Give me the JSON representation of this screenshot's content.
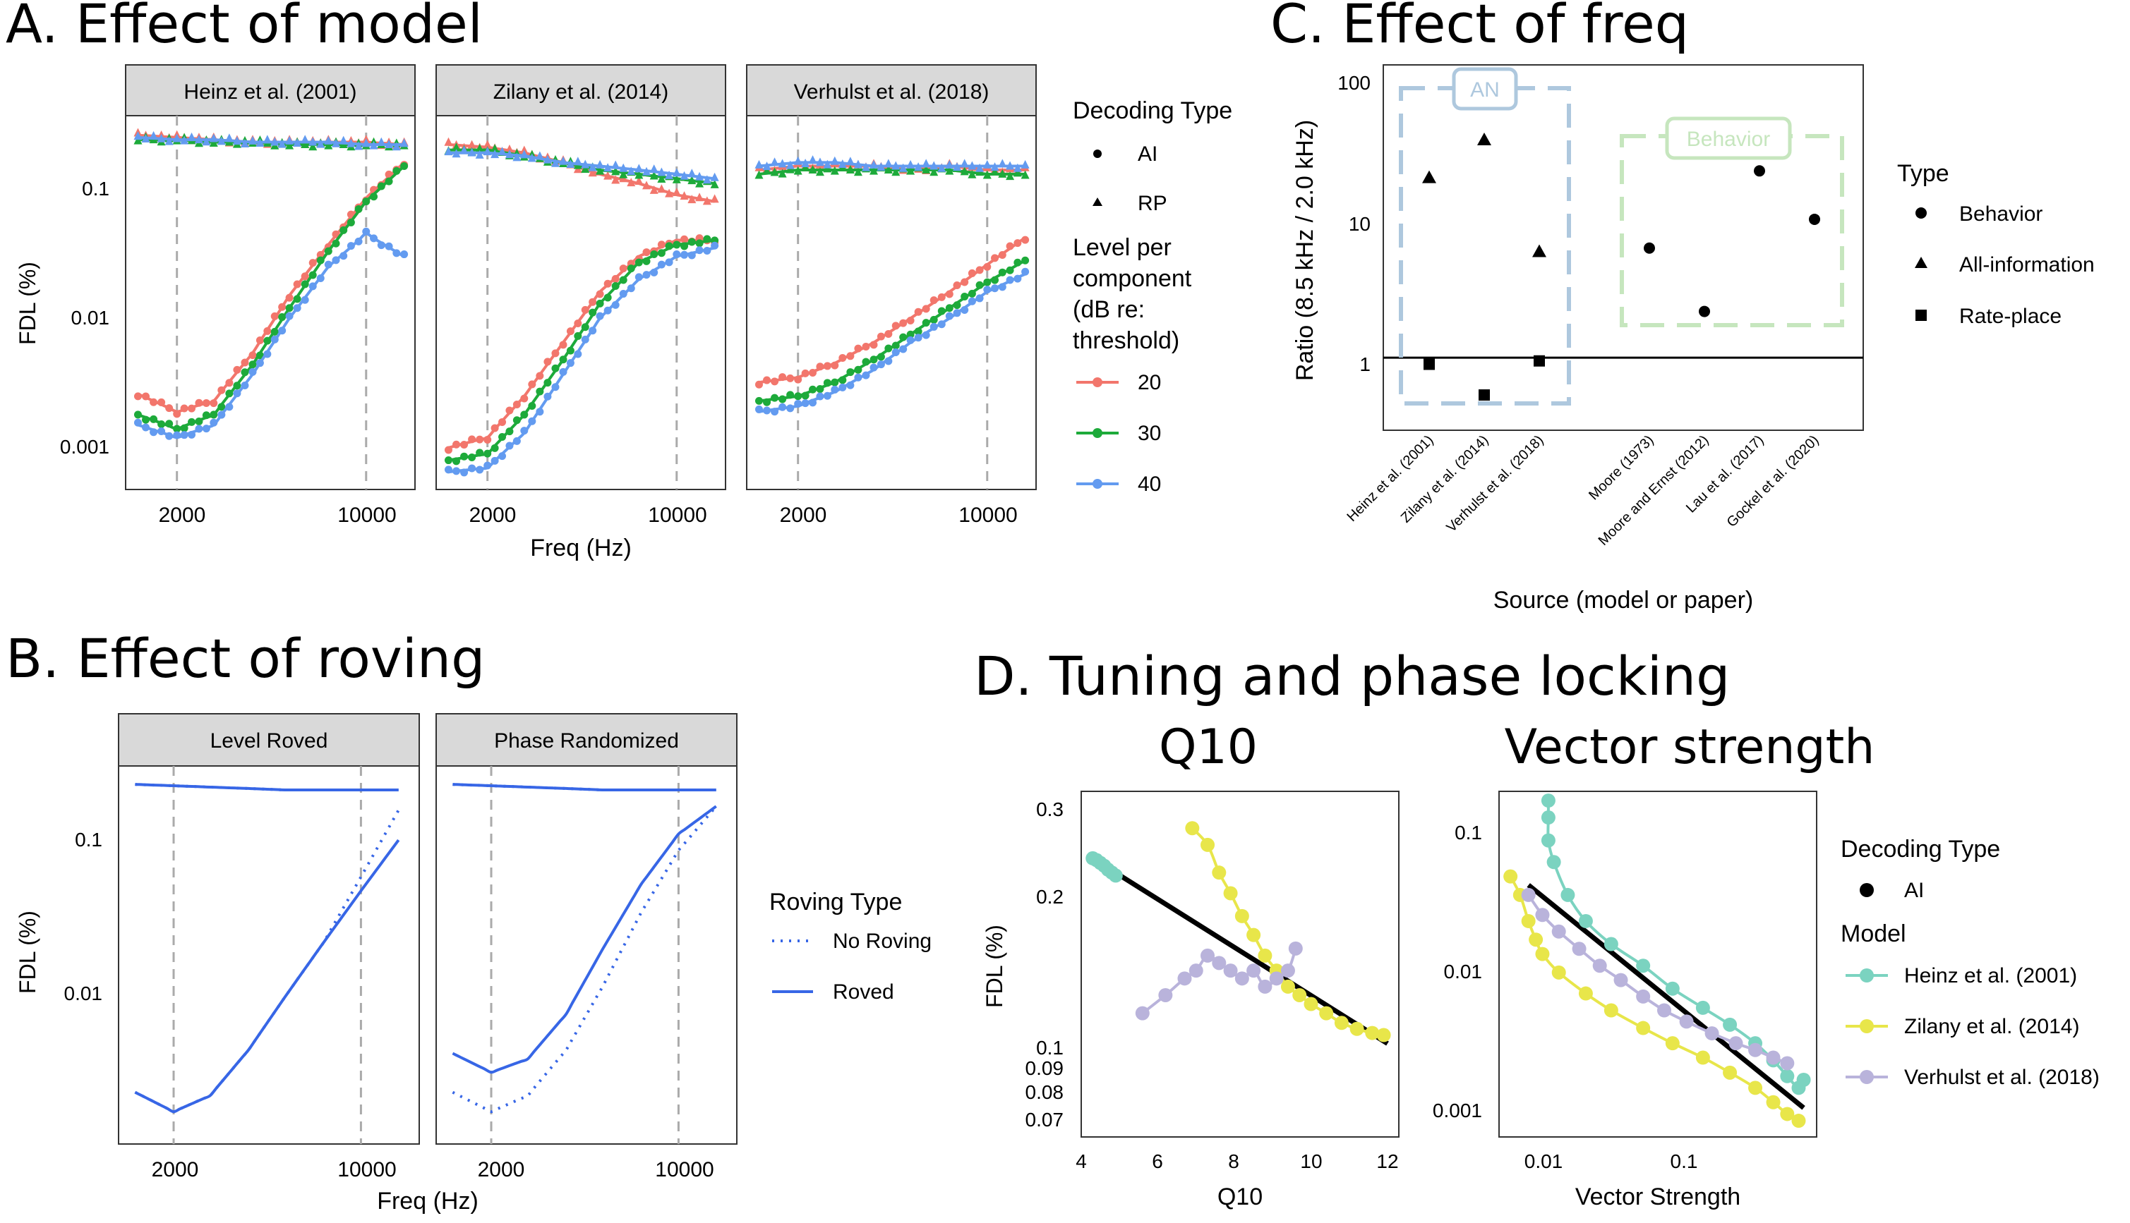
{
  "colors": {
    "red": "#F2766C",
    "green": "#1DAA3A",
    "blue": "#639BF0",
    "teal": "#7BD3C0",
    "yellow": "#E8E64A",
    "lavender": "#B9B3DB",
    "an_box": "#AEC8DE",
    "behavior_box": "#C6E6BE",
    "strip": "#D9D9D9",
    "roving_blue": "#3766E6"
  },
  "panelA": {
    "title": "A. Effect of model",
    "ylabel": "FDL (%)",
    "xlabel": "Freq (Hz)",
    "facets": [
      "Heinz et al. (2001)",
      "Zilany et al. (2014)",
      "Verhulst et al. (2018)"
    ],
    "xticks": [
      "2000",
      "10000"
    ],
    "yticks": [
      "0.1",
      "0.01",
      "0.001"
    ],
    "legend": {
      "decoding_title": "Decoding Type",
      "decoding_items": [
        "AI",
        "RP"
      ],
      "level_title_lines": [
        "Level per",
        "component",
        "(dB re:",
        "threshold)"
      ],
      "level_items": [
        "20",
        "30",
        "40"
      ]
    }
  },
  "panelB": {
    "title": "B. Effect of roving",
    "ylabel": "FDL (%)",
    "xlabel": "Freq (Hz)",
    "facets": [
      "Level Roved",
      "Phase Randomized"
    ],
    "xticks": [
      "2000",
      "10000"
    ],
    "yticks": [
      "0.1",
      "0.01"
    ],
    "legend": {
      "title": "Roving Type",
      "items": [
        "No Roving",
        "Roved"
      ]
    }
  },
  "panelC": {
    "title": "C. Effect of freq",
    "ylabel": "Ratio (8.5 kHz / 2.0 kHz)",
    "xlabel": "Source (model or paper)",
    "yticks": [
      "100",
      "10",
      "1"
    ],
    "box_an": "AN",
    "box_behavior": "Behavior",
    "legend": {
      "title": "Type",
      "items": [
        "Behavior",
        "All-information",
        "Rate-place"
      ]
    }
  },
  "panelD": {
    "title": "D. Tuning and phase locking",
    "q10": {
      "title": "Q10",
      "ylabel": "FDL (%)",
      "xlabel": "Q10",
      "xticks": [
        "4",
        "6",
        "8",
        "10",
        "12"
      ],
      "yticks": [
        "0.3",
        "0.2",
        "0.1",
        "0.09",
        "0.08",
        "0.07"
      ]
    },
    "vs": {
      "title": "Vector strength",
      "xlabel": "Vector Strength",
      "xticks": [
        "0.01",
        "0.1"
      ],
      "yticks": [
        "0.1",
        "0.01",
        "0.001"
      ]
    },
    "legend": {
      "decoding_title": "Decoding Type",
      "decoding_items": [
        "AI"
      ],
      "model_title": "Model",
      "model_items": [
        "Heinz et al. (2001)",
        "Zilany et al. (2014)",
        "Verhulst et al. (2018)"
      ]
    }
  },
  "chart_data": [
    {
      "id": "A",
      "type": "scatter",
      "title": "A. Effect of model",
      "xlabel": "Freq (Hz)",
      "ylabel": "FDL (%)",
      "x_scale": "log",
      "y_scale": "log",
      "xlim": [
        1300,
        17000
      ],
      "ylim": [
        0.0005,
        0.35
      ],
      "x": [
        1400,
        2000,
        2800,
        4000,
        5600,
        8000,
        11300,
        16000
      ],
      "facets": [
        {
          "name": "Heinz et al. (2001)",
          "series": [
            {
              "name": "20",
              "decoding": "RP",
              "values": [
                0.26,
                0.25,
                0.24,
                0.23,
                0.23,
                0.23,
                0.23,
                0.22
              ]
            },
            {
              "name": "30",
              "decoding": "RP",
              "values": [
                0.24,
                0.24,
                0.23,
                0.23,
                0.22,
                0.22,
                0.22,
                0.22
              ]
            },
            {
              "name": "40",
              "decoding": "RP",
              "values": [
                0.25,
                0.24,
                0.24,
                0.23,
                0.23,
                0.23,
                0.22,
                0.22
              ]
            },
            {
              "name": "20",
              "decoding": "AI",
              "values": [
                0.0026,
                0.0019,
                0.0023,
                0.0054,
                0.015,
                0.037,
                0.085,
                0.16
              ]
            },
            {
              "name": "30",
              "decoding": "AI",
              "values": [
                0.0018,
                0.0014,
                0.0018,
                0.0044,
                0.012,
                0.033,
                0.08,
                0.15
              ]
            },
            {
              "name": "40",
              "decoding": "AI",
              "values": [
                0.0015,
                0.0012,
                0.0015,
                0.0037,
                0.01,
                0.025,
                0.045,
                0.03
              ]
            }
          ]
        },
        {
          "name": "Zilany et al. (2014)",
          "series": [
            {
              "name": "20",
              "decoding": "RP",
              "values": [
                0.22,
                0.21,
                0.19,
                0.16,
                0.13,
                0.11,
                0.09,
                0.08
              ]
            },
            {
              "name": "30",
              "decoding": "RP",
              "values": [
                0.2,
                0.2,
                0.18,
                0.16,
                0.14,
                0.13,
                0.12,
                0.11
              ]
            },
            {
              "name": "40",
              "decoding": "RP",
              "values": [
                0.19,
                0.19,
                0.18,
                0.16,
                0.15,
                0.14,
                0.13,
                0.12
              ]
            },
            {
              "name": "20",
              "decoding": "AI",
              "values": [
                0.001,
                0.0012,
                0.0025,
                0.0065,
                0.016,
                0.03,
                0.04,
                0.04
              ]
            },
            {
              "name": "30",
              "decoding": "AI",
              "values": [
                0.0008,
                0.0009,
                0.0018,
                0.0048,
                0.013,
                0.027,
                0.037,
                0.04
              ]
            },
            {
              "name": "40",
              "decoding": "AI",
              "values": [
                0.00065,
                0.0007,
                0.0013,
                0.0037,
                0.01,
                0.02,
                0.03,
                0.035
              ]
            }
          ]
        },
        {
          "name": "Verhulst et al. (2018)",
          "series": [
            {
              "name": "20",
              "decoding": "RP",
              "values": [
                0.14,
                0.15,
                0.15,
                0.15,
                0.14,
                0.15,
                0.14,
                0.14
              ]
            },
            {
              "name": "30",
              "decoding": "RP",
              "values": [
                0.13,
                0.14,
                0.14,
                0.14,
                0.14,
                0.14,
                0.13,
                0.13
              ]
            },
            {
              "name": "40",
              "decoding": "RP",
              "values": [
                0.15,
                0.16,
                0.16,
                0.15,
                0.15,
                0.15,
                0.15,
                0.15
              ]
            },
            {
              "name": "20",
              "decoding": "AI",
              "values": [
                0.0032,
                0.0035,
                0.0045,
                0.0065,
                0.01,
                0.016,
                0.026,
                0.042
              ]
            },
            {
              "name": "30",
              "decoding": "AI",
              "values": [
                0.0023,
                0.0025,
                0.0032,
                0.0048,
                0.0075,
                0.012,
                0.019,
                0.028
              ]
            },
            {
              "name": "40",
              "decoding": "AI",
              "values": [
                0.0019,
                0.0021,
                0.0027,
                0.004,
                0.0065,
                0.01,
                0.016,
                0.022
              ]
            }
          ]
        }
      ]
    },
    {
      "id": "B",
      "type": "line",
      "title": "B. Effect of roving",
      "xlabel": "Freq (Hz)",
      "ylabel": "FDL (%)",
      "x_scale": "log",
      "y_scale": "log",
      "xlim": [
        1300,
        17000
      ],
      "ylim": [
        0.0009,
        0.3
      ],
      "x": [
        1400,
        2000,
        2800,
        4000,
        5600,
        8000,
        11300,
        16000
      ],
      "facets": [
        {
          "name": "Level Roved",
          "series": [
            {
              "name": "No Roving",
              "values": [
                0.24,
                0.235,
                0.23,
                0.225,
                0.22,
                0.22,
                0.22,
                0.22
              ]
            },
            {
              "name": "Roved",
              "values": [
                0.24,
                0.235,
                0.23,
                0.225,
                0.22,
                0.22,
                0.22,
                0.22
              ]
            },
            {
              "name": "No Roving",
              "values": [
                0.0019,
                0.0014,
                0.0018,
                0.0037,
                0.0085,
                0.02,
                0.056,
                0.16
              ]
            },
            {
              "name": "Roved",
              "values": [
                0.0019,
                0.0014,
                0.0018,
                0.0037,
                0.0085,
                0.02,
                0.045,
                0.1
              ]
            }
          ]
        },
        {
          "name": "Phase Randomized",
          "series": [
            {
              "name": "No Roving",
              "values": [
                0.24,
                0.235,
                0.23,
                0.225,
                0.22,
                0.22,
                0.22,
                0.22
              ]
            },
            {
              "name": "Roved",
              "values": [
                0.24,
                0.235,
                0.23,
                0.225,
                0.22,
                0.22,
                0.22,
                0.22
              ]
            },
            {
              "name": "No Roving",
              "values": [
                0.0019,
                0.0014,
                0.0018,
                0.0037,
                0.01,
                0.032,
                0.085,
                0.17
              ]
            },
            {
              "name": "Roved",
              "values": [
                0.0035,
                0.0026,
                0.0032,
                0.0065,
                0.018,
                0.05,
                0.11,
                0.17
              ]
            }
          ]
        }
      ]
    },
    {
      "id": "C",
      "type": "scatter",
      "title": "C. Effect of freq",
      "xlabel": "Source (model or paper)",
      "ylabel": "Ratio (8.5 kHz / 2.0 kHz)",
      "y_scale": "log",
      "ylim": [
        0.35,
        100
      ],
      "categories": [
        "Heinz et al. (2001)",
        "Zilany et al. (2014)",
        "Verhulst et al. (2018)",
        "Moore (1973)",
        "Moore and Ernst (2012)",
        "Lau et al. (2017)",
        "Gockel et al. (2020)"
      ],
      "series": [
        {
          "name": "All-information",
          "values": [
            18,
            33,
            5.5,
            null,
            null,
            null,
            null
          ]
        },
        {
          "name": "Rate-place",
          "values": [
            0.9,
            0.55,
            0.95,
            null,
            null,
            null,
            null
          ]
        },
        {
          "name": "Behavior",
          "values": [
            null,
            null,
            null,
            5.8,
            2.1,
            20,
            9.2
          ]
        }
      ],
      "hline": 1
    },
    {
      "id": "D-Q10",
      "type": "scatter",
      "title": "Q10",
      "xlabel": "Q10",
      "ylabel": "FDL (%)",
      "y_scale": "log",
      "xlim": [
        4,
        12
      ],
      "ylim": [
        0.065,
        0.32
      ],
      "series": [
        {
          "name": "Heinz et al. (2001)",
          "x": [
            4.3,
            4.4,
            4.5,
            4.6,
            4.7,
            4.8,
            4.9
          ],
          "y": [
            0.235,
            0.233,
            0.23,
            0.227,
            0.223,
            0.22,
            0.217
          ]
        },
        {
          "name": "Zilany et al. (2014)",
          "x": [
            6.9,
            7.3,
            7.6,
            7.9,
            8.2,
            8.5,
            8.8,
            9.1,
            9.4,
            9.7,
            10.0,
            10.4,
            10.8,
            11.2,
            11.6,
            11.9
          ],
          "y": [
            0.27,
            0.25,
            0.22,
            0.2,
            0.18,
            0.165,
            0.15,
            0.14,
            0.13,
            0.125,
            0.12,
            0.115,
            0.11,
            0.107,
            0.105,
            0.104
          ]
        },
        {
          "name": "Verhulst et al. (2018)",
          "x": [
            5.6,
            6.2,
            6.7,
            7.0,
            7.3,
            7.6,
            7.9,
            8.2,
            8.5,
            8.8,
            9.1,
            9.4,
            9.6
          ],
          "y": [
            0.115,
            0.125,
            0.135,
            0.14,
            0.15,
            0.145,
            0.14,
            0.135,
            0.14,
            0.13,
            0.135,
            0.14,
            0.155
          ]
        }
      ],
      "fit": {
        "name": "AI",
        "x": [
          4.3,
          12
        ],
        "y": [
          0.235,
          0.1
        ]
      }
    },
    {
      "id": "D-VS",
      "type": "scatter",
      "title": "Vector strength",
      "xlabel": "Vector Strength",
      "ylabel": "FDL (%)",
      "x_scale": "log",
      "y_scale": "log",
      "xlim": [
        0.005,
        0.8
      ],
      "ylim": [
        0.0007,
        0.15
      ],
      "series": [
        {
          "name": "Heinz et al. (2001)",
          "x": [
            0.011,
            0.011,
            0.011,
            0.012,
            0.015,
            0.02,
            0.03,
            0.05,
            0.08,
            0.13,
            0.2,
            0.3,
            0.4,
            0.5,
            0.6,
            0.65
          ],
          "y": [
            0.13,
            0.1,
            0.07,
            0.05,
            0.03,
            0.02,
            0.014,
            0.01,
            0.007,
            0.0052,
            0.004,
            0.003,
            0.0023,
            0.0018,
            0.0015,
            0.0017
          ]
        },
        {
          "name": "Zilany et al. (2014)",
          "x": [
            0.006,
            0.007,
            0.008,
            0.009,
            0.01,
            0.013,
            0.02,
            0.03,
            0.05,
            0.08,
            0.13,
            0.2,
            0.3,
            0.4,
            0.5,
            0.6
          ],
          "y": [
            0.04,
            0.03,
            0.02,
            0.015,
            0.012,
            0.009,
            0.0065,
            0.005,
            0.0038,
            0.003,
            0.0024,
            0.0019,
            0.0015,
            0.0012,
            0.001,
            0.0009
          ]
        },
        {
          "name": "Verhulst et al. (2018)",
          "x": [
            0.008,
            0.01,
            0.013,
            0.018,
            0.025,
            0.035,
            0.05,
            0.07,
            0.1,
            0.15,
            0.22,
            0.3,
            0.4,
            0.5
          ],
          "y": [
            0.03,
            0.022,
            0.017,
            0.013,
            0.01,
            0.008,
            0.0062,
            0.005,
            0.0042,
            0.0035,
            0.003,
            0.0027,
            0.0024,
            0.0022
          ]
        }
      ],
      "fit": {
        "name": "AI",
        "x": [
          0.008,
          0.65
        ],
        "y": [
          0.035,
          0.0011
        ]
      }
    }
  ]
}
